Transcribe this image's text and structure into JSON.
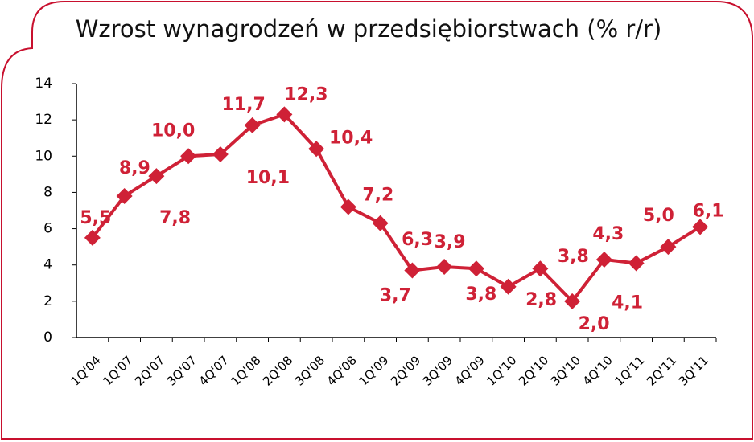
{
  "chart_data": {
    "type": "line",
    "title": "Wzrost wynagrodzeń w przedsiębiorstwach (% r/r)",
    "categories": [
      "1Q'04",
      "1Q'07",
      "2Q'07",
      "3Q'07",
      "4Q'07",
      "1Q'08",
      "2Q'08",
      "3Q'08",
      "4Q'08",
      "1Q'09",
      "2Q'09",
      "3Q'09",
      "4Q'09",
      "1Q'10",
      "2Q'10",
      "3Q'10",
      "4Q'10",
      "1Q'11",
      "2Q'11",
      "3Q'11"
    ],
    "series": [
      {
        "color": "#cf2136",
        "values": [
          5.5,
          7.8,
          8.9,
          10.0,
          10.1,
          11.7,
          12.3,
          10.4,
          7.2,
          6.3,
          3.7,
          3.9,
          3.8,
          2.8,
          3.8,
          2.0,
          4.3,
          4.1,
          5.0,
          6.1
        ],
        "value_labels": [
          "5,5",
          "7,8",
          "8,9",
          "10,0",
          "10,1",
          "11,7",
          "12,3",
          "10,4",
          "7,2",
          "6,3",
          "3,7",
          "3,9",
          "3,8",
          "2,8",
          "3,8",
          "2,0",
          "4,3",
          "4,1",
          "5,0",
          "6,1"
        ]
      }
    ],
    "ylim": [
      0,
      14
    ],
    "yticks": [
      0,
      2,
      4,
      6,
      8,
      10,
      12,
      14
    ],
    "grid": false
  }
}
